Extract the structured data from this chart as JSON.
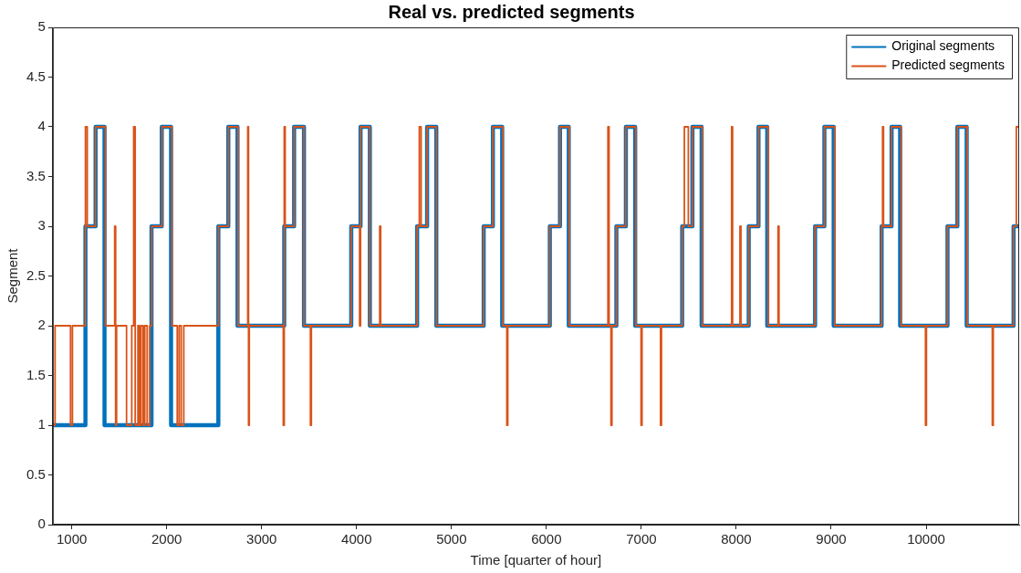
{
  "chart_data": {
    "type": "step",
    "title": "Real vs. predicted segments",
    "xlabel": "Time [quarter of hour]",
    "ylabel": "Segment",
    "xlim": [
      800,
      10980
    ],
    "xticks": [
      1000,
      2000,
      3000,
      4000,
      5000,
      6000,
      7000,
      8000,
      9000,
      10000
    ],
    "ylim": [
      0,
      5
    ],
    "yticks": [
      0,
      0.5,
      1,
      1.5,
      2,
      2.5,
      3,
      3.5,
      4,
      4.5,
      5
    ],
    "grid": false,
    "legend": "top right",
    "marker": "none",
    "line_style": "solid",
    "series": [
      {
        "name": "Original segments",
        "color": "#0072bd",
        "x": [
          800,
          1144,
          1251,
          1345,
          1840,
          1948,
          2046,
          2544,
          2649,
          2746,
          3238,
          3342,
          3446,
          3944,
          4042,
          4140,
          4638,
          4743,
          4840,
          5339,
          5436,
          5534,
          6036,
          6143,
          6235,
          6737,
          6837,
          6935,
          7430,
          7538,
          7635,
          8131,
          8234,
          8326,
          8830,
          8928,
          9026,
          9531,
          9636,
          9726,
          10225,
          10329,
          10427,
          10921,
          10980
        ],
        "values": [
          1,
          3,
          4,
          1,
          3,
          4,
          1,
          3,
          4,
          2,
          3,
          4,
          2,
          3,
          4,
          2,
          3,
          4,
          2,
          3,
          4,
          2,
          3,
          4,
          2,
          3,
          4,
          2,
          3,
          4,
          2,
          3,
          4,
          2,
          3,
          4,
          2,
          3,
          4,
          2,
          3,
          4,
          2,
          3,
          3
        ]
      },
      {
        "name": "Predicted segments",
        "color": "#d95319",
        "x": [
          800,
          824,
          987,
          1007,
          1144,
          1163,
          1251,
          1355,
          1452,
          1462,
          1472,
          1577,
          1632,
          1652,
          1668,
          1697,
          1713,
          1730,
          1752,
          1769,
          1794,
          1821,
          1843,
          1951,
          2055,
          2111,
          2131,
          2153,
          2180,
          2544,
          2649,
          2752,
          2854,
          2862,
          2870,
          3228,
          3238,
          3248,
          3342,
          3446,
          3514,
          3524,
          3944,
          4032,
          4042,
          4140,
          4244,
          4254,
          4638,
          4661,
          4680,
          4743,
          4840,
          5339,
          5436,
          5540,
          5583,
          5593,
          6036,
          6143,
          6241,
          6648,
          6660,
          6680,
          6690,
          6737,
          6837,
          6941,
          6997,
          7007,
          7202,
          7212,
          7430,
          7453,
          7495,
          7538,
          7642,
          7951,
          7961,
          8039,
          8049,
          8131,
          8234,
          8336,
          8440,
          8450,
          8830,
          8928,
          9036,
          9531,
          9541,
          9551,
          9636,
          9736,
          9993,
          10003,
          10225,
          10329,
          10433,
          10697,
          10707,
          10921,
          10950,
          10980
        ],
        "values": [
          1,
          2,
          1,
          2,
          4,
          3,
          4,
          2,
          3,
          1,
          2,
          1,
          2,
          4,
          1,
          2,
          1,
          2,
          1,
          2,
          1,
          2,
          3,
          4,
          2,
          1,
          2,
          1,
          2,
          3,
          4,
          2,
          4,
          1,
          2,
          1,
          4,
          3,
          4,
          2,
          1,
          2,
          3,
          2,
          4,
          2,
          3,
          2,
          3,
          4,
          3,
          4,
          2,
          3,
          4,
          2,
          1,
          2,
          3,
          4,
          2,
          4,
          2,
          1,
          2,
          3,
          4,
          2,
          1,
          2,
          1,
          2,
          3,
          4,
          3,
          4,
          2,
          4,
          2,
          3,
          2,
          3,
          4,
          2,
          3,
          2,
          3,
          4,
          2,
          3,
          4,
          3,
          4,
          2,
          1,
          2,
          3,
          4,
          2,
          1,
          2,
          3,
          4,
          4
        ]
      }
    ]
  }
}
